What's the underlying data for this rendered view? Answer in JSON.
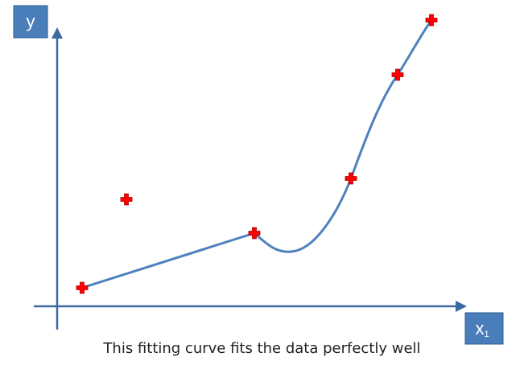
{
  "axes": {
    "y_label": "y",
    "x_label_main": "x",
    "x_label_subscript": "1"
  },
  "caption": "This fitting curve fits the data perfectly well",
  "colors": {
    "axis": "#3b6aa0",
    "label_box": "#4a7ebb",
    "curve": "#4f81bd",
    "marker": "#ff0000"
  },
  "legend_items": [],
  "marker_icon": "red-plus-icon"
}
